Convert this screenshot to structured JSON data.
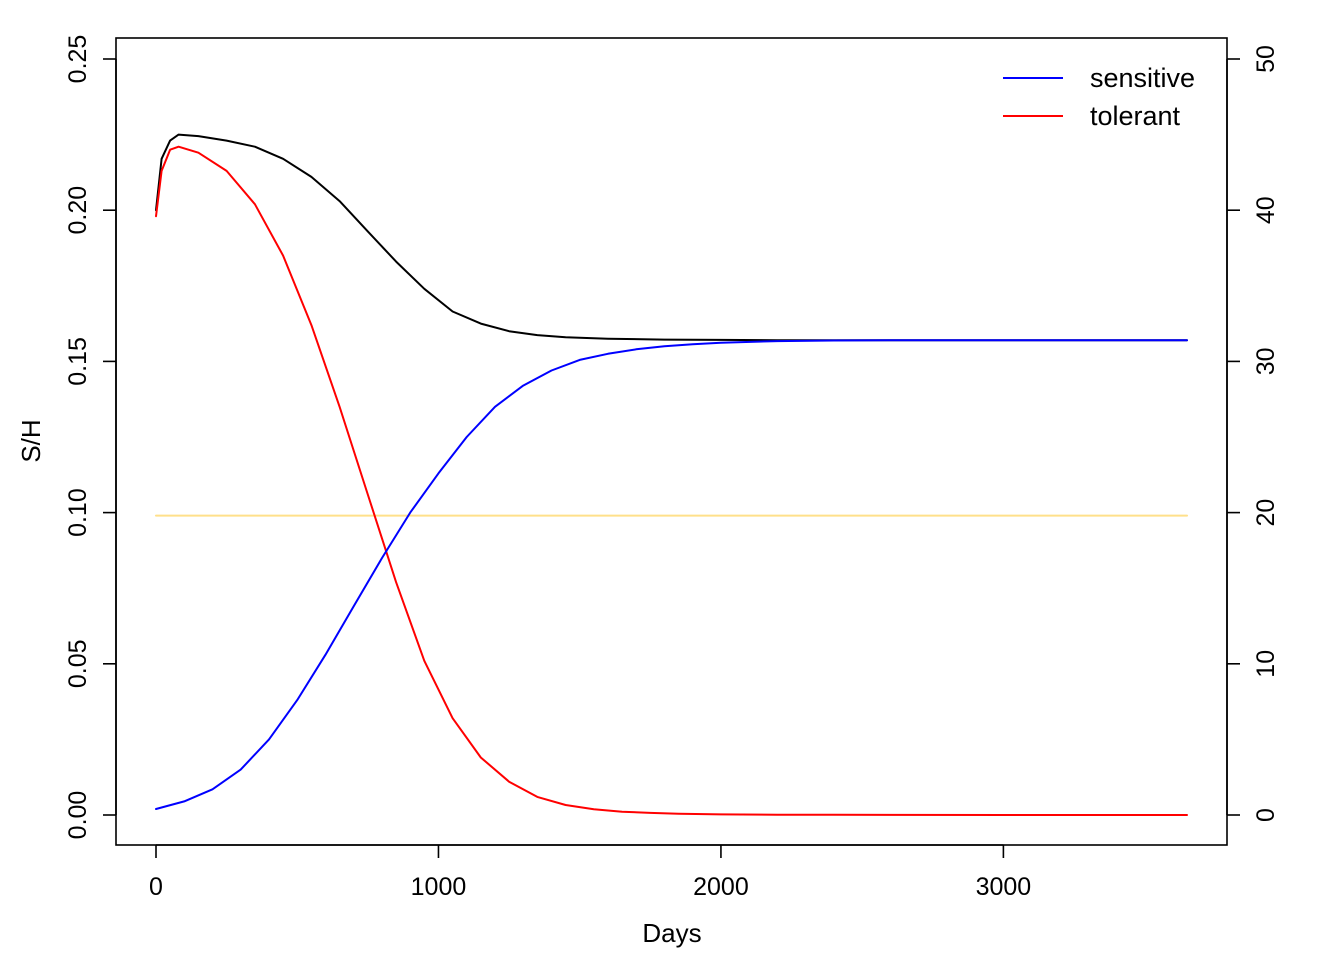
{
  "chart_data": {
    "type": "line",
    "xlabel": "Days",
    "ylabel": "S/H",
    "y2label": "",
    "xlim": [
      0,
      3650
    ],
    "xticks": [
      0,
      1000,
      2000,
      3000
    ],
    "ylim": [
      0,
      0.25
    ],
    "yticks": [
      "0.00",
      "0.05",
      "0.10",
      "0.15",
      "0.20",
      "0.25"
    ],
    "y2lim": [
      0,
      50
    ],
    "y2ticks": [
      "0",
      "10",
      "20",
      "30",
      "40",
      "50"
    ],
    "grid": false,
    "legend": {
      "position": "top-right",
      "entries": [
        "sensitive",
        "tolerant"
      ]
    },
    "series": [
      {
        "name": "sensitive",
        "color": "#0000ff",
        "x": [
          0,
          100,
          200,
          300,
          400,
          500,
          600,
          700,
          800,
          900,
          1000,
          1100,
          1200,
          1300,
          1400,
          1500,
          1600,
          1700,
          1800,
          1900,
          2000,
          2200,
          2400,
          2600,
          3000,
          3650
        ],
        "y": [
          0.002,
          0.0045,
          0.0085,
          0.015,
          0.025,
          0.038,
          0.053,
          0.069,
          0.085,
          0.1,
          0.113,
          0.125,
          0.135,
          0.142,
          0.147,
          0.1505,
          0.1525,
          0.154,
          0.155,
          0.1557,
          0.1562,
          0.1567,
          0.1569,
          0.157,
          0.157,
          0.157
        ]
      },
      {
        "name": "tolerant",
        "color": "#ff0000",
        "x": [
          0,
          20,
          50,
          80,
          150,
          250,
          350,
          450,
          550,
          650,
          750,
          850,
          950,
          1050,
          1150,
          1250,
          1350,
          1450,
          1550,
          1650,
          1750,
          1850,
          2000,
          2200,
          2400,
          2600,
          3000,
          3650
        ],
        "y": [
          0.198,
          0.213,
          0.22,
          0.221,
          0.219,
          0.213,
          0.202,
          0.185,
          0.162,
          0.135,
          0.106,
          0.077,
          0.051,
          0.032,
          0.019,
          0.011,
          0.006,
          0.0033,
          0.0019,
          0.0011,
          0.0007,
          0.0004,
          0.0002,
          0.0001,
          5e-05,
          2e-05,
          0.0,
          0.0
        ]
      },
      {
        "color": "#000000",
        "x": [
          0,
          20,
          50,
          80,
          150,
          250,
          350,
          450,
          550,
          650,
          750,
          850,
          950,
          1050,
          1150,
          1250,
          1350,
          1450,
          1600,
          1800,
          2000,
          2200,
          2600,
          3000,
          3650
        ],
        "y": [
          0.2,
          0.217,
          0.223,
          0.225,
          0.2245,
          0.223,
          0.221,
          0.217,
          0.211,
          0.203,
          0.193,
          0.183,
          0.174,
          0.1665,
          0.1625,
          0.16,
          0.1587,
          0.158,
          0.1575,
          0.1572,
          0.1571,
          0.157,
          0.157,
          0.157,
          0.157
        ]
      },
      {
        "color": "#ffe08a",
        "x": [
          0,
          3650
        ],
        "y": [
          0.099,
          0.099
        ]
      }
    ]
  }
}
